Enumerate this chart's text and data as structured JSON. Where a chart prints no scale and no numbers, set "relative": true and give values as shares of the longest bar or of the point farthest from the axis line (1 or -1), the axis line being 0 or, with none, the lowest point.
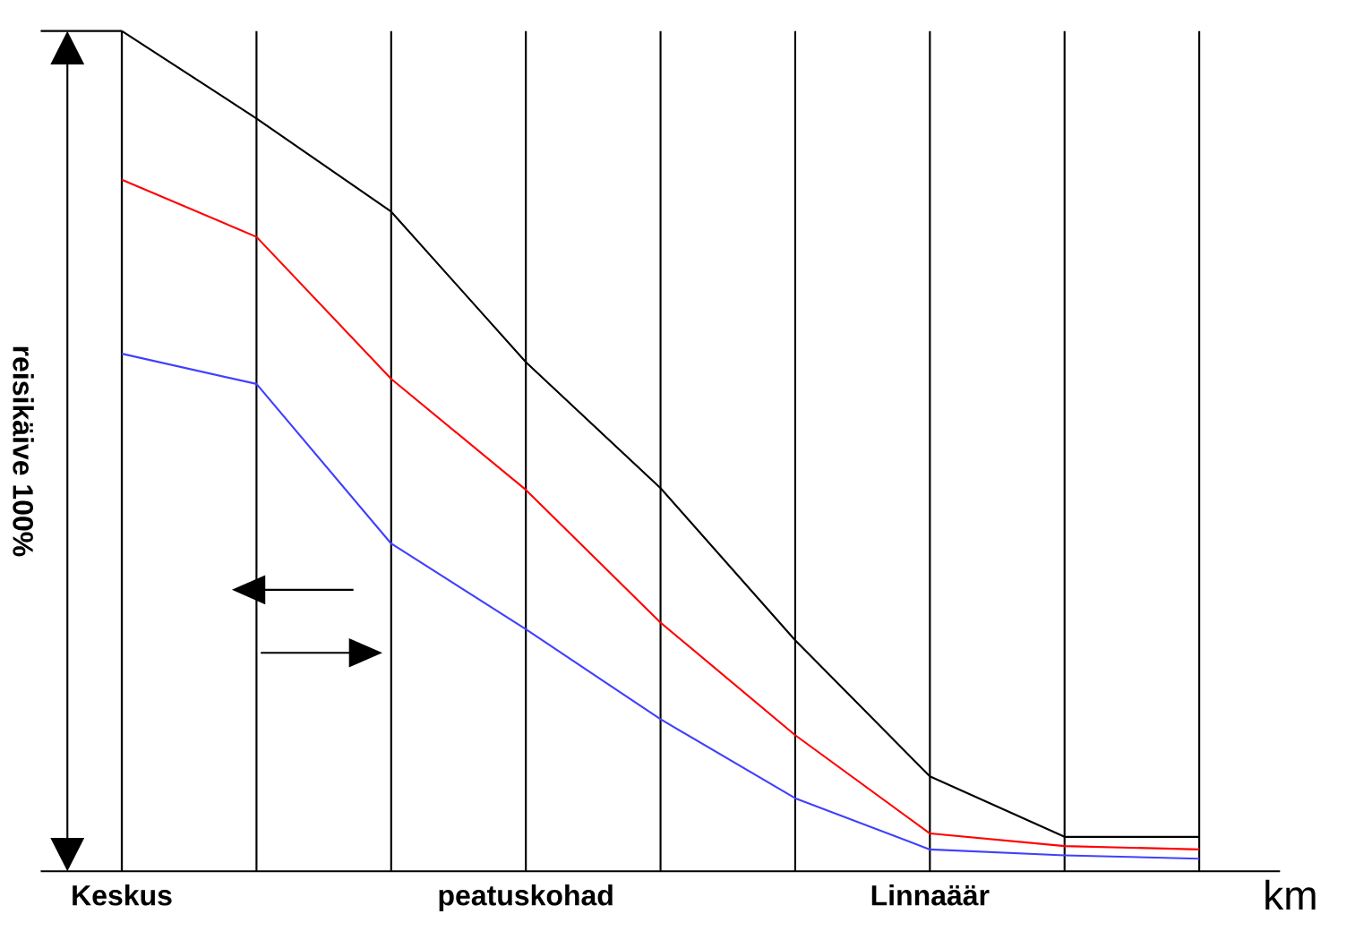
{
  "chart_data": {
    "type": "line",
    "relative": true,
    "ylabel": "reisikäive 100%",
    "xlabel": "km",
    "categories": [
      "Keskus",
      null,
      null,
      "peatuskohad",
      null,
      null,
      "Linnaäär",
      null,
      null
    ],
    "series": [
      {
        "color": "#000000",
        "values": [
          1.0,
          0.896,
          0.785,
          0.606,
          0.456,
          0.275,
          0.113,
          0.041,
          0.041
        ]
      },
      {
        "color": "#ff0000",
        "values": [
          0.823,
          0.755,
          0.586,
          0.454,
          0.296,
          0.162,
          0.045,
          0.03,
          0.026
        ]
      },
      {
        "color": "#4040ff",
        "values": [
          0.616,
          0.58,
          0.39,
          0.288,
          0.181,
          0.087,
          0.026,
          0.019,
          0.015
        ]
      }
    ],
    "grid": "x",
    "marker": "none"
  }
}
